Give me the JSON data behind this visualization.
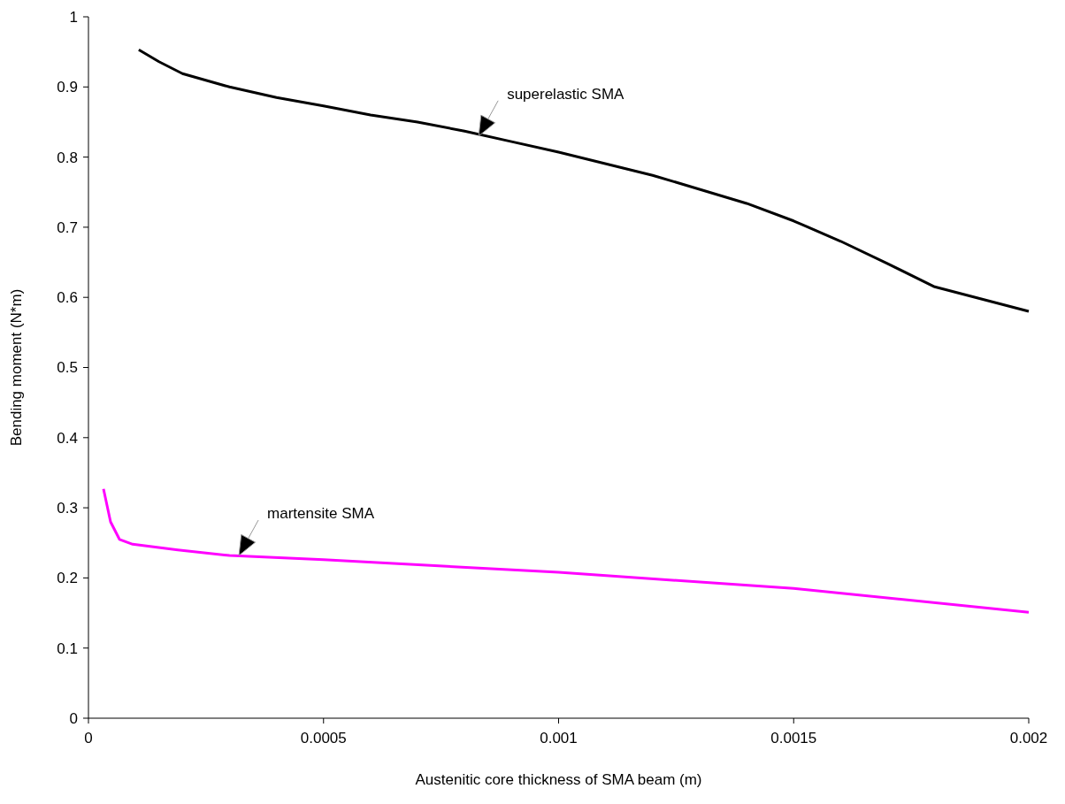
{
  "chart_data": {
    "type": "line",
    "xlabel": "Austenitic core thickness of SMA beam (m)",
    "ylabel": "Bending moment (N*m)",
    "xlim": [
      0,
      0.002
    ],
    "xticks": [
      0,
      0.0005,
      0.001,
      0.0015,
      0.002
    ],
    "ylim": [
      0,
      1
    ],
    "yticks": [
      0,
      0.1,
      0.2,
      0.3,
      0.4,
      0.5,
      0.6,
      0.7,
      0.8,
      0.9,
      1
    ],
    "grid": false,
    "marker": "none",
    "line_style": "solid",
    "series": [
      {
        "color": "#000000",
        "x": [
          0.000107,
          0.00015,
          0.0002,
          0.0003,
          0.0004,
          0.0005,
          0.0006,
          0.0007,
          0.0008,
          0.0009,
          0.001,
          0.0012,
          0.0014,
          0.0015,
          0.0016,
          0.0017,
          0.0018,
          0.002
        ],
        "values": [
          0.953,
          0.936,
          0.919,
          0.9,
          0.885,
          0.873,
          0.86,
          0.85,
          0.837,
          0.822,
          0.807,
          0.774,
          0.734,
          0.709,
          0.68,
          0.648,
          0.615,
          0.58
        ]
      },
      {
        "color": "#ff00ff",
        "x": [
          3.2e-05,
          4.7e-05,
          6.6e-05,
          9.4e-05,
          0.00019,
          0.0003,
          0.0005,
          0.001,
          0.0015,
          0.002
        ],
        "values": [
          0.327,
          0.28,
          0.255,
          0.248,
          0.24,
          0.232,
          0.226,
          0.208,
          0.185,
          0.151
        ]
      }
    ],
    "annotations": [
      {
        "text": "superelastic SMA",
        "x": 0.00083,
        "y": 0.83
      },
      {
        "text": "martensite SMA",
        "x": 0.00032,
        "y": 0.232
      }
    ]
  }
}
